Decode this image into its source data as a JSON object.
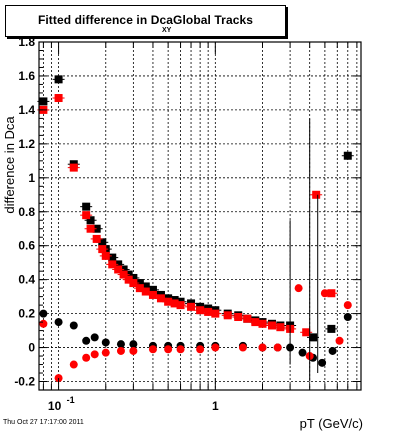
{
  "title": {
    "main": "Fitted difference in Dca",
    "main_tail": "Global Tracks",
    "sub": "XY"
  },
  "footer": {
    "datestamp": "Thu Oct 27 17:17:00 2011"
  },
  "colors": {
    "series1": "#000000",
    "series2": "#ff0000",
    "grid": "#000000"
  },
  "chart_data": {
    "type": "scatter",
    "title": "Fitted difference in Dca XY Global Tracks",
    "xlabel": "pT (GeV/c)",
    "ylabel": "difference in Dca",
    "xscale": "log",
    "xlim": [
      0.075,
      8.5
    ],
    "ylim": [
      -0.25,
      1.8
    ],
    "grid": true,
    "x_tick_labels": [
      {
        "value": 0.1,
        "base": "10",
        "exp": "-1"
      },
      {
        "value": 1,
        "base": "1",
        "exp": ""
      }
    ],
    "y_ticks": [
      -0.2,
      0,
      0.2,
      0.4,
      0.6,
      0.8,
      1,
      1.2,
      1.4,
      1.6,
      1.8
    ],
    "y_tick_labels": [
      "-0.2",
      "0",
      "0.2",
      "0.4",
      "0.6",
      "0.8",
      "1",
      "1.2",
      "1.4",
      "1.6",
      "1.8"
    ],
    "series": [
      {
        "marker": "square",
        "color": "#000000",
        "x": [
          0.08,
          0.1,
          0.125,
          0.15,
          0.16,
          0.175,
          0.19,
          0.2,
          0.22,
          0.24,
          0.26,
          0.28,
          0.3,
          0.33,
          0.36,
          0.4,
          0.45,
          0.5,
          0.55,
          0.6,
          0.7,
          0.8,
          0.9,
          1.0,
          1.2,
          1.4,
          1.6,
          1.8,
          2.0,
          2.3,
          2.6,
          3.0,
          4.2,
          5.5,
          7.0
        ],
        "y": [
          1.45,
          1.58,
          1.08,
          0.83,
          0.75,
          0.7,
          0.62,
          0.58,
          0.53,
          0.49,
          0.46,
          0.43,
          0.41,
          0.38,
          0.36,
          0.34,
          0.31,
          0.29,
          0.28,
          0.27,
          0.26,
          0.24,
          0.23,
          0.22,
          0.2,
          0.19,
          0.17,
          0.16,
          0.15,
          0.14,
          0.13,
          0.13,
          0.06,
          0.11,
          1.13
        ]
      },
      {
        "marker": "square",
        "color": "#ff0000",
        "x": [
          0.08,
          0.1,
          0.125,
          0.15,
          0.16,
          0.175,
          0.19,
          0.2,
          0.22,
          0.24,
          0.26,
          0.28,
          0.3,
          0.33,
          0.36,
          0.4,
          0.45,
          0.5,
          0.55,
          0.6,
          0.7,
          0.8,
          0.9,
          1.0,
          1.2,
          1.4,
          1.6,
          1.8,
          2.0,
          2.3,
          2.6,
          3.0,
          3.8,
          4.4,
          5.5
        ],
        "y": [
          1.4,
          1.47,
          1.06,
          0.78,
          0.7,
          0.64,
          0.58,
          0.54,
          0.49,
          0.46,
          0.43,
          0.4,
          0.38,
          0.35,
          0.33,
          0.31,
          0.29,
          0.27,
          0.26,
          0.25,
          0.24,
          0.22,
          0.21,
          0.2,
          0.19,
          0.18,
          0.17,
          0.15,
          0.14,
          0.13,
          0.12,
          0.11,
          0.09,
          0.9,
          0.32
        ]
      },
      {
        "marker": "circle",
        "color": "#000000",
        "x": [
          0.08,
          0.1,
          0.125,
          0.15,
          0.17,
          0.2,
          0.25,
          0.3,
          0.4,
          0.5,
          0.6,
          0.8,
          1.0,
          1.5,
          2.0,
          2.5,
          3.0,
          3.6,
          4.2,
          4.8,
          5.6,
          7.0
        ],
        "y": [
          0.2,
          0.15,
          0.13,
          0.04,
          0.06,
          0.03,
          0.02,
          0.02,
          0.01,
          0.01,
          0.01,
          0.01,
          0.01,
          0.01,
          0.0,
          0.0,
          0.0,
          -0.03,
          -0.06,
          -0.09,
          -0.02,
          0.18
        ]
      },
      {
        "marker": "circle",
        "color": "#ff0000",
        "x": [
          0.08,
          0.1,
          0.125,
          0.15,
          0.17,
          0.2,
          0.25,
          0.3,
          0.4,
          0.5,
          0.6,
          0.8,
          1.0,
          1.5,
          2.0,
          2.5,
          3.4,
          4.0,
          5.0,
          6.2,
          7.0
        ],
        "y": [
          0.14,
          -0.18,
          -0.1,
          -0.06,
          -0.04,
          -0.03,
          -0.02,
          -0.02,
          -0.01,
          -0.01,
          -0.01,
          -0.01,
          0.0,
          0.0,
          0.0,
          0.0,
          0.35,
          -0.05,
          0.32,
          0.04,
          0.25
        ]
      }
    ]
  }
}
